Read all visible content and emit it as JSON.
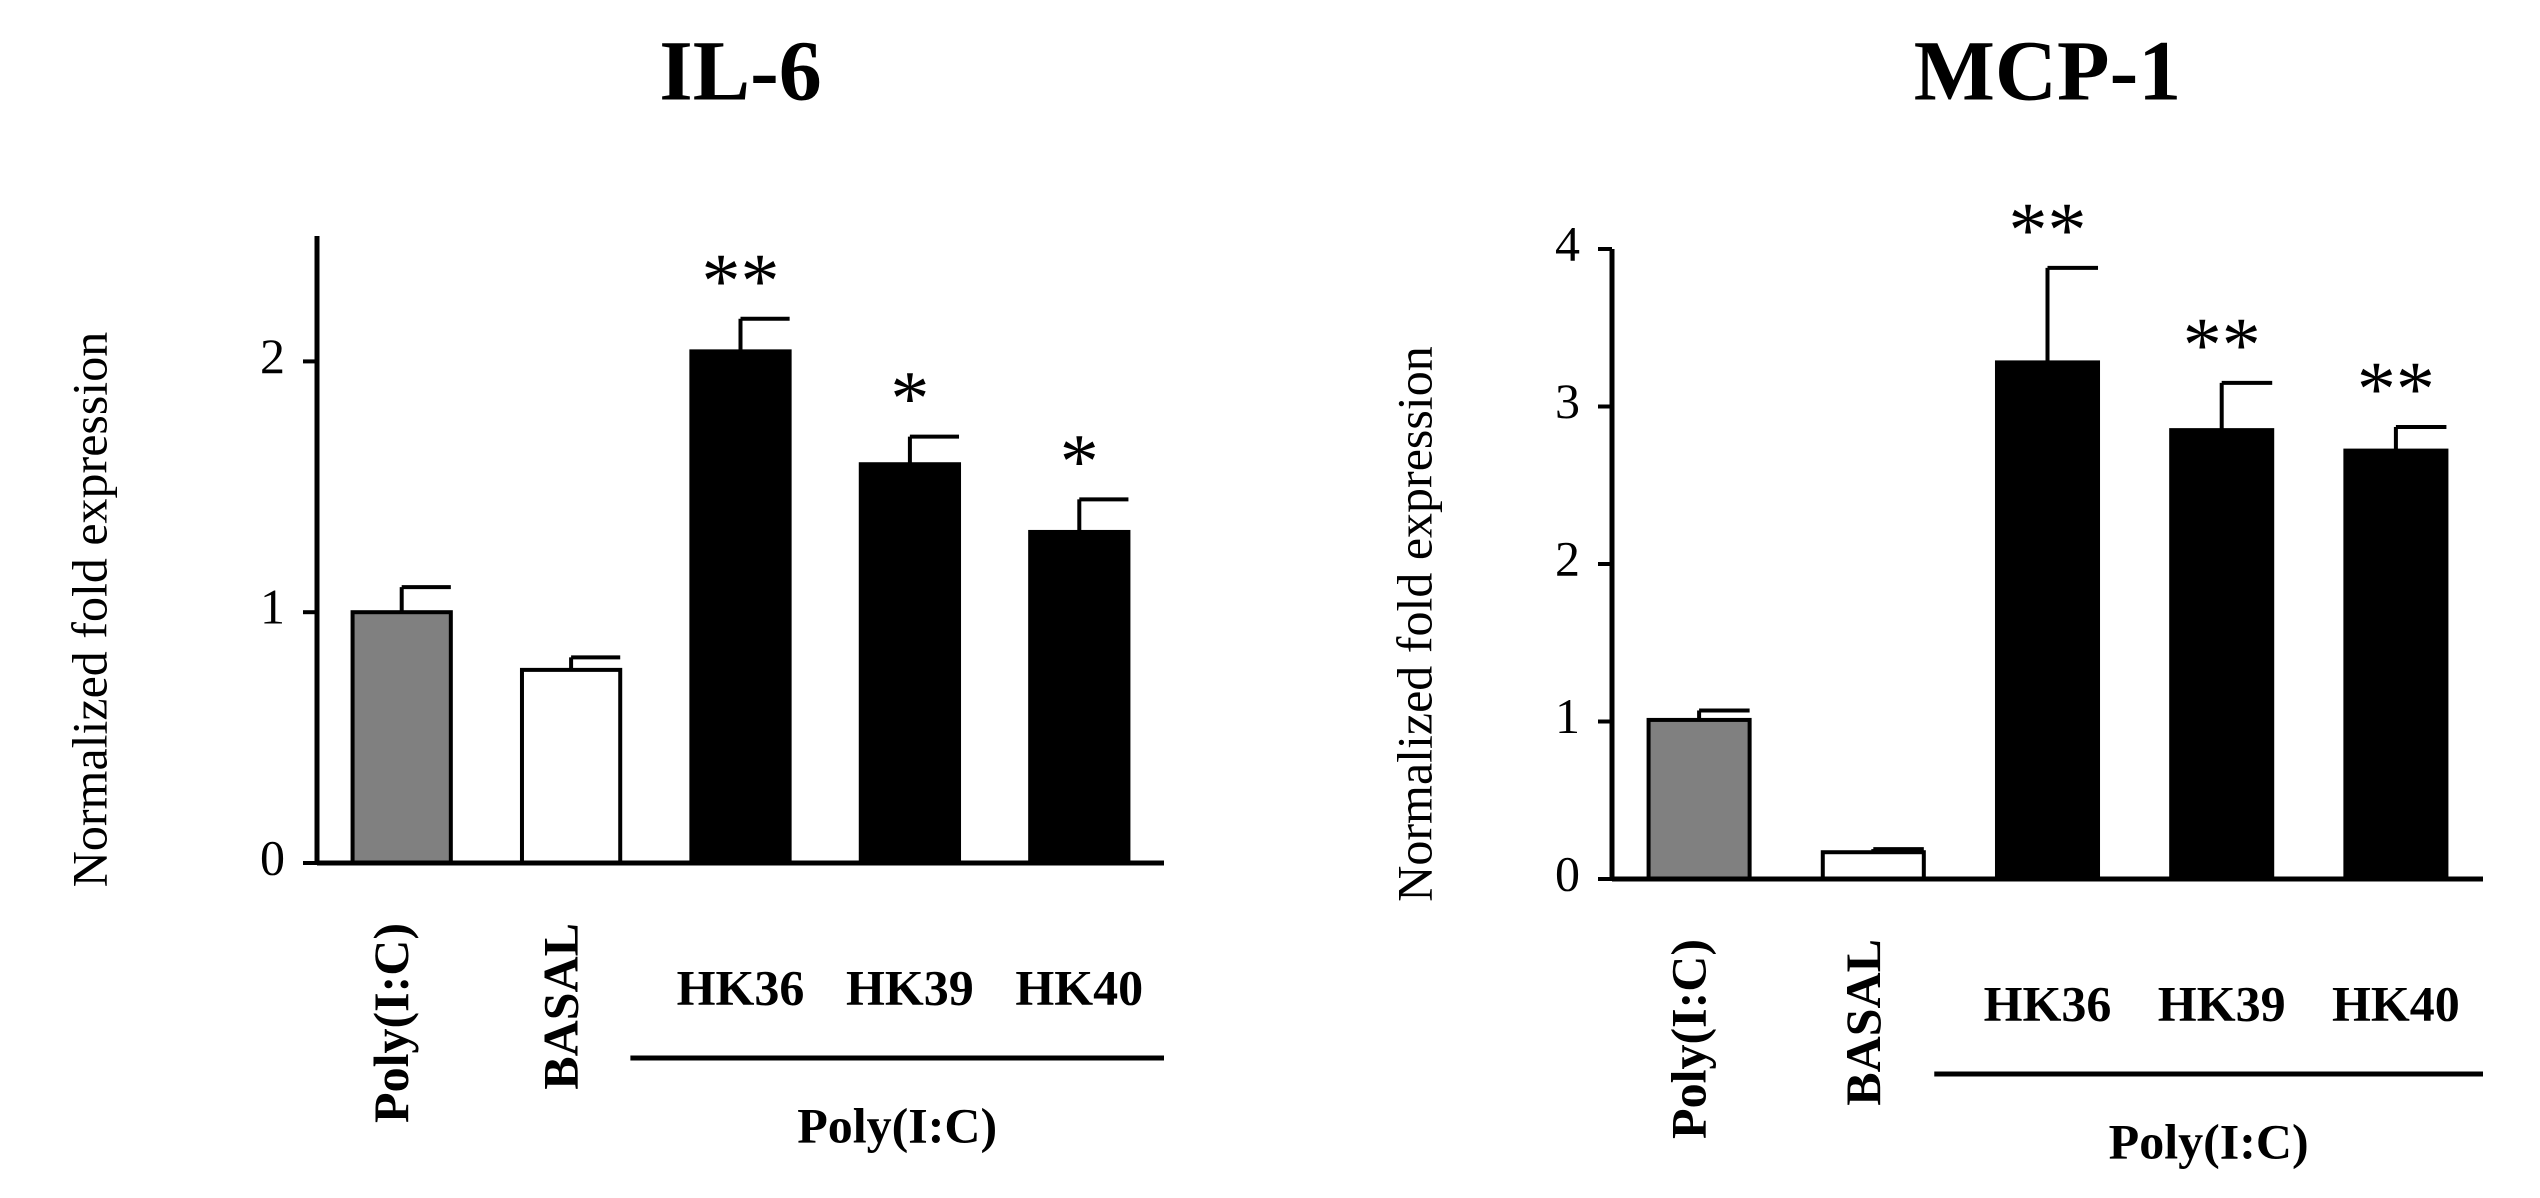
{
  "chart_data": [
    {
      "type": "bar",
      "title": "IL-6",
      "y_label": "Normalized  fold  expression",
      "categories": [
        "Poly(I:C)",
        "BASAL",
        "HK36",
        "HK39",
        "HK40"
      ],
      "values": [
        1.0,
        0.77,
        2.04,
        1.59,
        1.32
      ],
      "errors": [
        0.1,
        0.05,
        0.13,
        0.11,
        0.13
      ],
      "colors": [
        "#808080",
        "#ffffff",
        "#000000",
        "#000000",
        "#000000"
      ],
      "annotations": [
        null,
        null,
        "**",
        "*",
        "*"
      ],
      "group_label": "Poly(I:C)",
      "ylim": [
        0,
        2.5
      ],
      "yticks": [
        0,
        1,
        2
      ]
    },
    {
      "type": "bar",
      "title": "MCP-1",
      "y_label": "Normalized  fold  expression",
      "categories": [
        "Poly(I:C)",
        "BASAL",
        "HK36",
        "HK39",
        "HK40"
      ],
      "values": [
        1.01,
        0.17,
        3.28,
        2.85,
        2.72
      ],
      "errors": [
        0.06,
        0.02,
        0.6,
        0.3,
        0.15
      ],
      "colors": [
        "#808080",
        "#ffffff",
        "#000000",
        "#000000",
        "#000000"
      ],
      "annotations": [
        null,
        null,
        "**",
        "**",
        "**"
      ],
      "group_label": "Poly(I:C)",
      "ylim": [
        0,
        4
      ],
      "yticks": [
        0,
        1,
        2,
        3,
        4
      ]
    }
  ]
}
